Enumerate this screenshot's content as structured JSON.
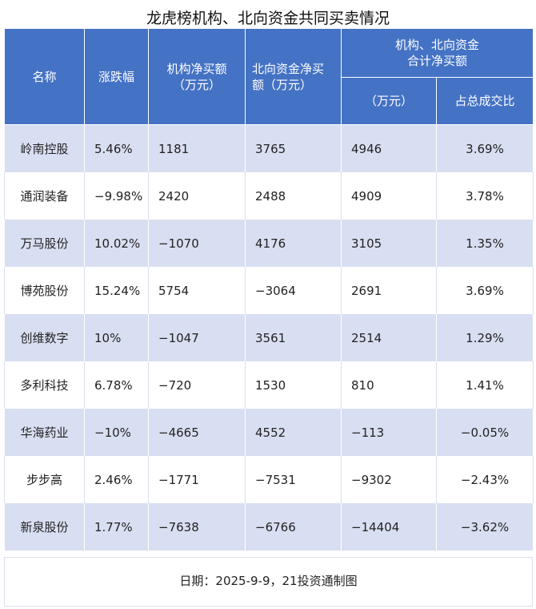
{
  "title": "龙虎榜机构、北向资金共同买卖情况",
  "headers": {
    "name": "名称",
    "change": "涨跌幅",
    "inst": "机构净买额（万元）",
    "north": "北向资金净买额（万元）",
    "combined_group": "机构、北向资金合计净买额",
    "combined_amount": "（万元）",
    "share": "占总成交比"
  },
  "rows": [
    {
      "name": "岭南控股",
      "change": "5.46%",
      "inst": "1181",
      "north": "3765",
      "combined": "4946",
      "share": "3.69%"
    },
    {
      "name": "通润装备",
      "change": "−9.98%",
      "inst": "2420",
      "north": "2488",
      "combined": "4909",
      "share": "3.78%"
    },
    {
      "name": "万马股份",
      "change": "10.02%",
      "inst": "−1070",
      "north": "4176",
      "combined": "3105",
      "share": "1.35%"
    },
    {
      "name": "博苑股份",
      "change": "15.24%",
      "inst": "5754",
      "north": "−3064",
      "combined": "2691",
      "share": "3.69%"
    },
    {
      "name": "创维数字",
      "change": "10%",
      "inst": "−1047",
      "north": "3561",
      "combined": "2514",
      "share": "1.29%"
    },
    {
      "name": "多利科技",
      "change": "6.78%",
      "inst": "−720",
      "north": "1530",
      "combined": "810",
      "share": "1.41%"
    },
    {
      "name": "华海药业",
      "change": "−10%",
      "inst": "−4665",
      "north": "4552",
      "combined": "−113",
      "share": "−0.05%"
    },
    {
      "name": "步步高",
      "change": "2.46%",
      "inst": "−1771",
      "north": "−7531",
      "combined": "−9302",
      "share": "−2.43%"
    },
    {
      "name": "新泉股份",
      "change": "1.77%",
      "inst": "−7638",
      "north": "−6766",
      "combined": "−14404",
      "share": "−3.62%"
    }
  ],
  "footer": "日期：2025-9-9，21投资通制图"
}
